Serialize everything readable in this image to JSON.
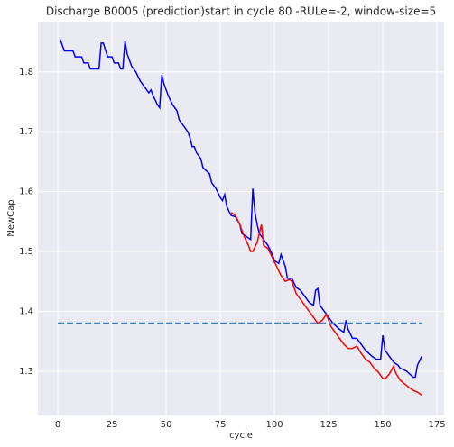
{
  "chart_data": {
    "type": "line",
    "title": "Discharge B0005 (prediction)start in cycle 80 -RULe=-2, window-size=5",
    "xlabel": "cycle",
    "ylabel": "NewCap",
    "xlim": [
      -9.2,
      178.3
    ],
    "xticks": [
      0,
      25,
      50,
      75,
      100,
      125,
      150,
      175
    ],
    "ylim": [
      1.226,
      1.884
    ],
    "yticks": [
      1.3,
      1.4,
      1.5,
      1.6,
      1.7,
      1.8
    ],
    "grid": true,
    "series": [
      {
        "color": "#0000ff",
        "linestyle": "solid",
        "x": [
          1,
          3,
          7,
          8,
          11,
          12,
          14,
          15,
          19,
          20,
          21,
          23,
          25,
          26,
          28,
          29,
          30,
          31,
          32,
          34,
          36,
          38,
          40,
          41,
          42,
          43,
          44,
          46,
          47,
          48,
          49,
          51,
          53,
          55,
          56,
          58,
          60,
          61,
          62,
          63,
          64,
          66,
          67,
          70,
          71,
          73,
          75,
          76,
          77,
          78,
          80,
          82,
          84,
          85,
          87,
          89,
          90,
          91,
          92,
          93,
          95,
          97,
          99,
          100,
          102,
          103,
          105,
          106,
          108,
          110,
          112,
          114,
          116,
          118,
          119,
          120,
          121,
          123,
          125,
          127,
          130,
          132,
          133,
          134,
          136,
          138,
          140,
          142,
          145,
          147,
          149,
          150,
          151,
          153,
          155,
          157,
          158,
          161,
          164,
          165,
          166,
          168
        ],
        "values": [
          1.855,
          1.835,
          1.835,
          1.825,
          1.825,
          1.815,
          1.815,
          1.805,
          1.805,
          1.848,
          1.848,
          1.825,
          1.825,
          1.815,
          1.815,
          1.805,
          1.805,
          1.852,
          1.83,
          1.81,
          1.8,
          1.785,
          1.775,
          1.77,
          1.765,
          1.77,
          1.76,
          1.745,
          1.74,
          1.795,
          1.78,
          1.76,
          1.745,
          1.735,
          1.72,
          1.71,
          1.7,
          1.69,
          1.675,
          1.675,
          1.665,
          1.655,
          1.64,
          1.63,
          1.615,
          1.605,
          1.59,
          1.585,
          1.595,
          1.575,
          1.56,
          1.558,
          1.545,
          1.53,
          1.525,
          1.52,
          1.605,
          1.565,
          1.545,
          1.53,
          1.52,
          1.51,
          1.495,
          1.485,
          1.48,
          1.495,
          1.475,
          1.455,
          1.455,
          1.44,
          1.435,
          1.425,
          1.415,
          1.41,
          1.435,
          1.438,
          1.41,
          1.4,
          1.39,
          1.38,
          1.37,
          1.365,
          1.385,
          1.37,
          1.355,
          1.355,
          1.345,
          1.335,
          1.325,
          1.32,
          1.32,
          1.36,
          1.335,
          1.325,
          1.315,
          1.31,
          1.305,
          1.3,
          1.29,
          1.29,
          1.31,
          1.325
        ]
      },
      {
        "color": "#ff0000",
        "linestyle": "solid",
        "x": [
          80,
          82,
          84,
          86,
          88,
          89,
          90,
          92,
          93,
          94,
          95,
          97,
          99,
          101,
          103,
          105,
          107,
          108,
          110,
          112,
          114,
          116,
          118,
          120,
          122,
          124,
          126,
          128,
          130,
          132,
          134,
          136,
          138,
          140,
          142,
          144,
          146,
          148,
          150,
          151,
          153,
          155,
          156,
          158,
          160,
          162,
          164,
          166,
          168
        ],
        "values": [
          1.565,
          1.56,
          1.545,
          1.525,
          1.51,
          1.5,
          1.5,
          1.515,
          1.53,
          1.545,
          1.51,
          1.505,
          1.49,
          1.475,
          1.46,
          1.45,
          1.453,
          1.45,
          1.43,
          1.42,
          1.41,
          1.4,
          1.39,
          1.38,
          1.385,
          1.395,
          1.375,
          1.365,
          1.355,
          1.345,
          1.338,
          1.338,
          1.342,
          1.33,
          1.32,
          1.315,
          1.305,
          1.298,
          1.288,
          1.287,
          1.295,
          1.308,
          1.297,
          1.285,
          1.279,
          1.273,
          1.268,
          1.265,
          1.26
        ]
      },
      {
        "color": "#3e84c0",
        "linestyle": "dashed",
        "x": [
          0,
          168
        ],
        "values": [
          1.38,
          1.38
        ]
      }
    ]
  }
}
